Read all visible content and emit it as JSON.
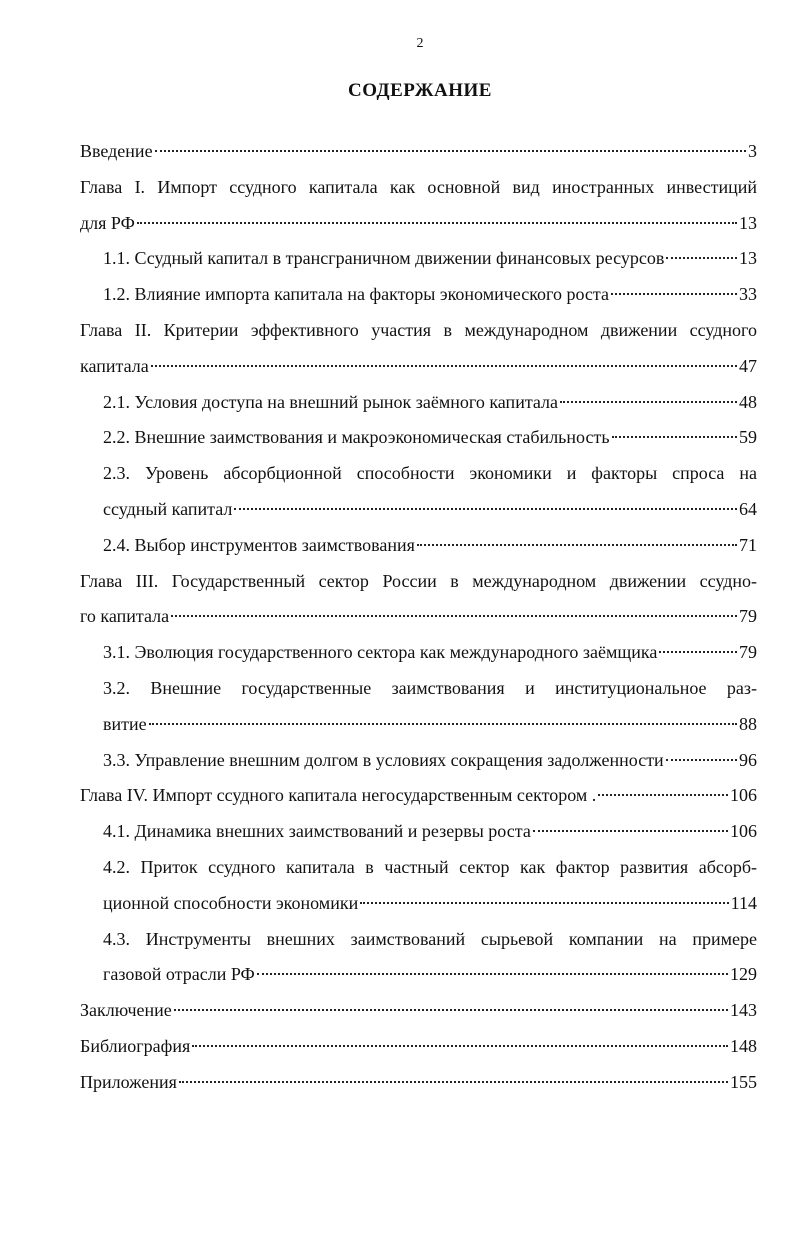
{
  "page_number": 2,
  "title": "СОДЕРЖАНИЕ",
  "entries": [
    {
      "lines": [
        "Введение"
      ],
      "page": 3
    },
    {
      "lines": [
        "Глава I. Импорт ссудного капитала как основной вид иностранных инвестиций",
        "для РФ"
      ],
      "page": 13,
      "sections": [
        {
          "lines": [
            "1.1. Ссудный капитал в трансграничном движении финансовых ресурсов"
          ],
          "page": 13
        },
        {
          "lines": [
            "1.2. Влияние импорта капитала на факторы экономического роста"
          ],
          "page": 33
        }
      ]
    },
    {
      "lines": [
        "Глава II. Критерии эффективного участия в международном движении ссудного",
        "капитала"
      ],
      "page": 47,
      "sections": [
        {
          "lines": [
            "2.1. Условия доступа на внешний рынок заёмного капитала"
          ],
          "page": 48
        },
        {
          "lines": [
            "2.2. Внешние заимствования и макроэкономическая стабильность"
          ],
          "page": 59
        },
        {
          "lines": [
            "2.3. Уровень абсорбционной способности экономики и факторы спроса на",
            "ссудный капитал"
          ],
          "page": 64
        },
        {
          "lines": [
            "2.4. Выбор инструментов заимствования"
          ],
          "page": 71
        }
      ]
    },
    {
      "lines": [
        "Глава III. Государственный сектор России в международном движении ссудно-",
        "го капитала"
      ],
      "page": 79,
      "sections": [
        {
          "lines": [
            "3.1. Эволюция государственного сектора как международного заёмщика"
          ],
          "page": 79
        },
        {
          "lines": [
            "3.2. Внешние государственные заимствования и институциональное раз-",
            "витие"
          ],
          "page": 88
        },
        {
          "lines": [
            "3.3. Управление внешним долгом в условиях сокращения задолженности"
          ],
          "page": 96
        }
      ]
    },
    {
      "lines": [
        "Глава IV. Импорт ссудного капитала негосударственным сектором ."
      ],
      "page": 106,
      "sections": [
        {
          "lines": [
            "4.1. Динамика внешних заимствований и резервы роста"
          ],
          "page": 106
        },
        {
          "lines": [
            "4.2. Приток ссудного капитала в частный сектор как фактор развития абсорб-",
            "ционной способности экономики"
          ],
          "page": 114
        },
        {
          "lines": [
            "4.3. Инструменты внешних заимствований сырьевой компании на примере",
            "газовой отрасли РФ"
          ],
          "page": 129
        }
      ]
    },
    {
      "lines": [
        "Заключение"
      ],
      "page": 143
    },
    {
      "lines": [
        "Библиография"
      ],
      "page": 148
    },
    {
      "lines": [
        "Приложения"
      ],
      "page": 155
    }
  ]
}
